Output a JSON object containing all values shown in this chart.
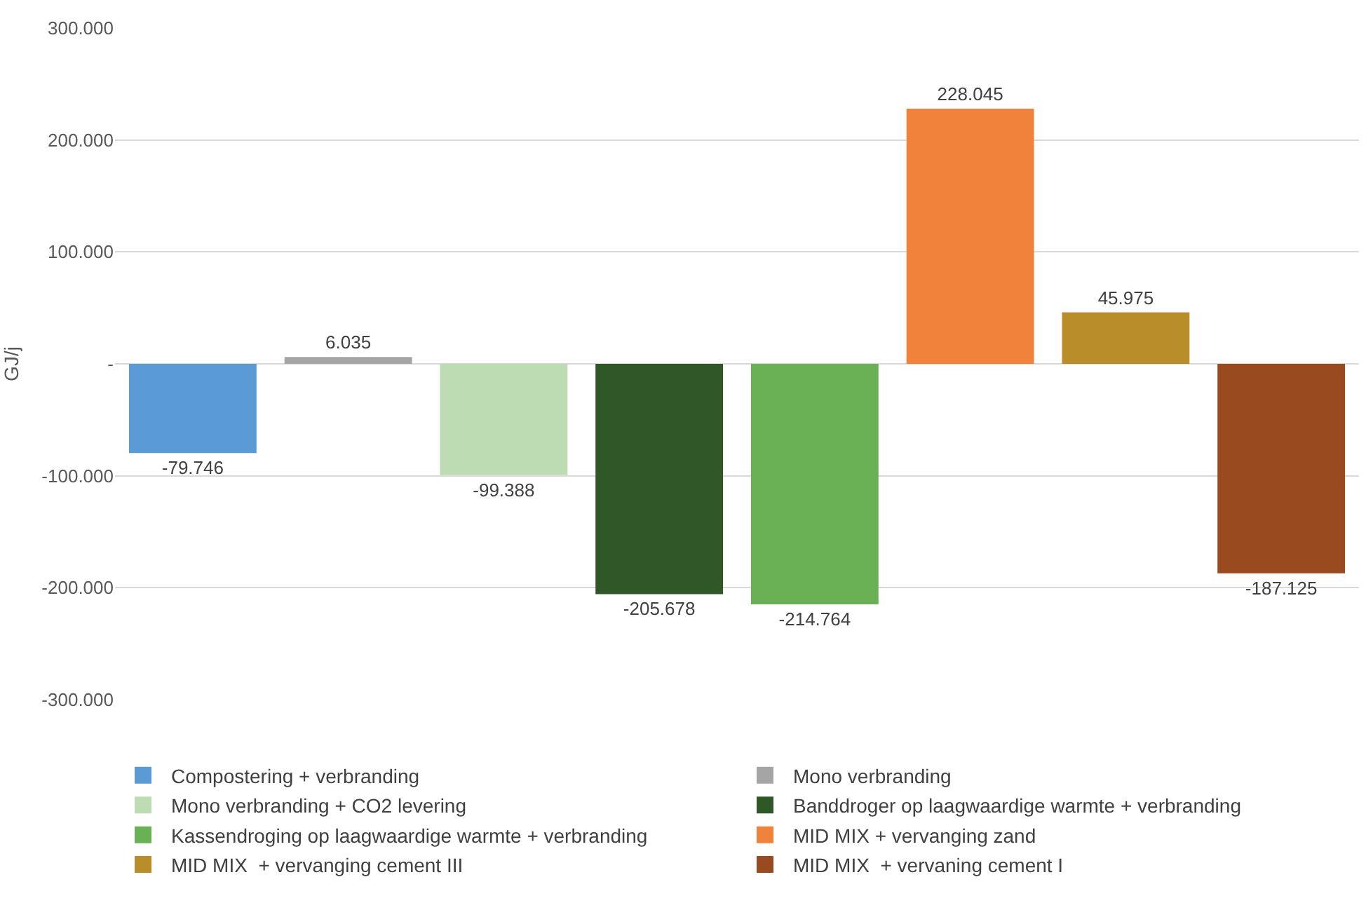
{
  "chart_data": {
    "type": "bar",
    "ylabel": "GJ/j",
    "categories": [
      null,
      null,
      null,
      null,
      null,
      null,
      null,
      null
    ],
    "ylim": [
      -300000,
      300000
    ],
    "yticks": [
      {
        "value": -300000,
        "label": "-300.000"
      },
      {
        "value": -200000,
        "label": "-200.000"
      },
      {
        "value": -100000,
        "label": "-100.000"
      },
      {
        "value": 0,
        "label": "-"
      },
      {
        "value": 100000,
        "label": "100.000"
      },
      {
        "value": 200000,
        "label": "200.000"
      },
      {
        "value": 300000,
        "label": "300.000"
      }
    ],
    "grid": "y",
    "legend": "bottom",
    "series": [
      {
        "name": "Compostering + verbranding",
        "color": "#5b9bd5",
        "values": [
          -79746,
          null,
          null,
          null,
          null,
          null,
          null,
          null
        ],
        "value_labels": [
          "-79.746",
          null,
          null,
          null,
          null,
          null,
          null,
          null
        ]
      },
      {
        "name": "Mono verbranding",
        "color": "#a5a5a5",
        "values": [
          null,
          6035,
          null,
          null,
          null,
          null,
          null,
          null
        ],
        "value_labels": [
          null,
          "6.035",
          null,
          null,
          null,
          null,
          null,
          null
        ]
      },
      {
        "name": "Mono verbranding + CO2 levering",
        "color": "#bddcb4",
        "values": [
          null,
          null,
          -99388,
          null,
          null,
          null,
          null,
          null
        ],
        "value_labels": [
          null,
          null,
          "-99.388",
          null,
          null,
          null,
          null,
          null
        ]
      },
      {
        "name": "Banddroger op laagwaardige warmte + verbranding",
        "color": "#2f5727",
        "values": [
          null,
          null,
          null,
          -205678,
          null,
          null,
          null,
          null
        ],
        "value_labels": [
          null,
          null,
          null,
          "-205.678",
          null,
          null,
          null,
          null
        ]
      },
      {
        "name": "Kassendroging op laagwaardige warmte + verbranding",
        "color": "#6ab155",
        "values": [
          null,
          null,
          null,
          null,
          -214764,
          null,
          null,
          null
        ],
        "value_labels": [
          null,
          null,
          null,
          null,
          "-214.764",
          null,
          null,
          null
        ]
      },
      {
        "name": "MID MIX + vervanging zand",
        "color": "#f0823c",
        "values": [
          null,
          null,
          null,
          null,
          null,
          228045,
          null,
          null
        ],
        "value_labels": [
          null,
          null,
          null,
          null,
          null,
          "228.045",
          null,
          null
        ]
      },
      {
        "name": "MID MIX  + vervanging cement III",
        "color": "#b98e2a",
        "values": [
          null,
          null,
          null,
          null,
          null,
          null,
          45975,
          null
        ],
        "value_labels": [
          null,
          null,
          null,
          null,
          null,
          null,
          "45.975",
          null
        ]
      },
      {
        "name": "MID MIX  + vervaning cement I",
        "color": "#994a1f",
        "values": [
          null,
          null,
          null,
          null,
          null,
          null,
          null,
          -187125
        ],
        "value_labels": [
          null,
          null,
          null,
          null,
          null,
          null,
          null,
          "-187.125"
        ]
      }
    ]
  }
}
